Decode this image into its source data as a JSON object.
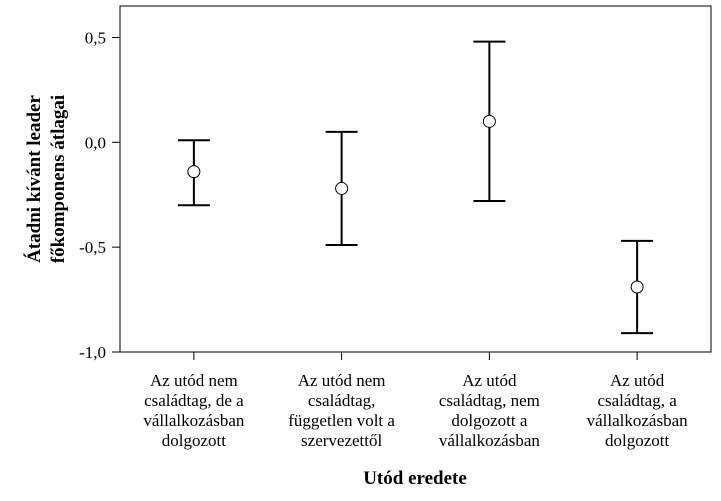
{
  "chart_data": {
    "type": "errorbar",
    "xlabel": "Utód eredete",
    "ylabel": [
      "Átadni kívánt leader",
      "főkomponens átlagai"
    ],
    "ylim": [
      -1.0,
      0.65
    ],
    "yticks": [
      -1.0,
      -0.5,
      0.0,
      0.5
    ],
    "ytick_labels": [
      "-1,0",
      "-0,5",
      "0,0",
      "0,5"
    ],
    "grid": false,
    "categories": [
      [
        "Az utód nem",
        "családtag, de a",
        "vállalkozásban",
        "dolgozott"
      ],
      [
        "Az utód nem",
        "családtag,",
        "független volt a",
        "szervezettől"
      ],
      [
        "Az utód",
        "családtag, nem",
        "dolgozott a",
        "vállalkozásban"
      ],
      [
        "Az utód",
        "családtag, a",
        "vállalkozásban",
        "dolgozott"
      ]
    ],
    "means": [
      -0.14,
      -0.22,
      0.1,
      -0.69
    ],
    "lower": [
      -0.3,
      -0.49,
      -0.28,
      -0.91
    ],
    "upper": [
      0.01,
      0.05,
      0.48,
      -0.47
    ]
  }
}
